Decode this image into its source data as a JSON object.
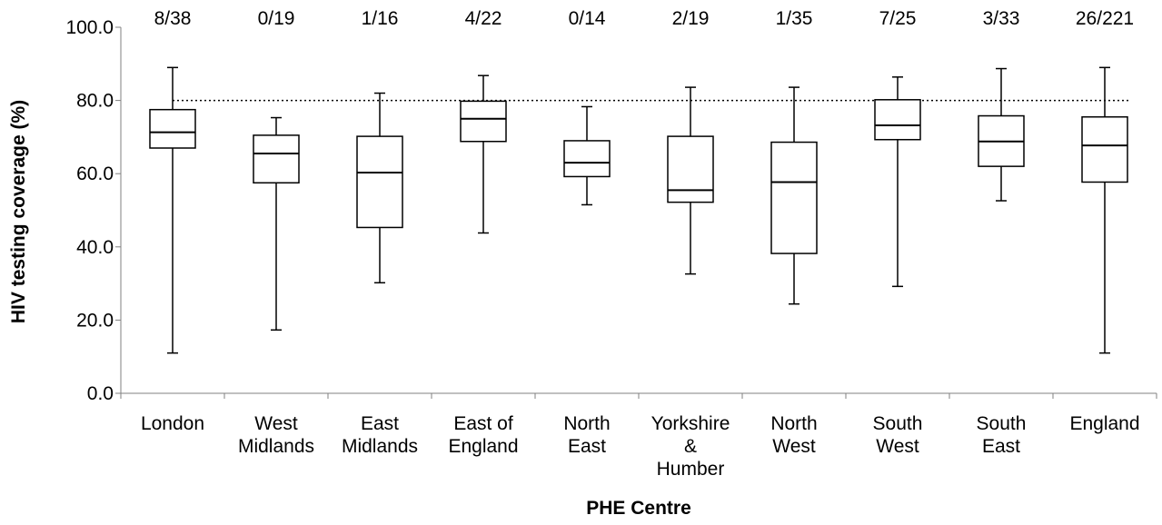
{
  "chart_data": {
    "type": "boxplot",
    "xlabel": "PHE Centre",
    "ylabel": "HIV testing coverage (%)",
    "ylim": [
      0,
      100
    ],
    "yticks": [
      "0.0",
      "20.0",
      "40.0",
      "60.0",
      "80.0",
      "100.0"
    ],
    "ytick_values": [
      0,
      20,
      40,
      60,
      80,
      100
    ],
    "reference_line": 80,
    "grid": false,
    "categories": [
      {
        "label_lines": [
          "London"
        ],
        "count": "8/38",
        "min": 11.0,
        "q1": 67.0,
        "median": 71.3,
        "q3": 77.5,
        "max": 89.0
      },
      {
        "label_lines": [
          "West",
          "Midlands"
        ],
        "count": "0/19",
        "min": 17.3,
        "q1": 57.5,
        "median": 65.5,
        "q3": 70.5,
        "max": 75.3
      },
      {
        "label_lines": [
          "East",
          "Midlands"
        ],
        "count": "1/16",
        "min": 30.2,
        "q1": 45.3,
        "median": 60.3,
        "q3": 70.2,
        "max": 82.0
      },
      {
        "label_lines": [
          "East of",
          "England"
        ],
        "count": "4/22",
        "min": 43.8,
        "q1": 68.8,
        "median": 75.0,
        "q3": 79.8,
        "max": 86.8
      },
      {
        "label_lines": [
          "North",
          "East"
        ],
        "count": "0/14",
        "min": 51.5,
        "q1": 59.2,
        "median": 63.0,
        "q3": 69.0,
        "max": 78.3
      },
      {
        "label_lines": [
          "Yorkshire",
          "&",
          "Humber"
        ],
        "count": "2/19",
        "min": 32.6,
        "q1": 52.2,
        "median": 55.5,
        "q3": 70.2,
        "max": 83.6
      },
      {
        "label_lines": [
          "North",
          "West"
        ],
        "count": "1/35",
        "min": 24.4,
        "q1": 38.2,
        "median": 57.7,
        "q3": 68.6,
        "max": 83.6
      },
      {
        "label_lines": [
          "South",
          "West"
        ],
        "count": "7/25",
        "min": 29.2,
        "q1": 69.3,
        "median": 73.2,
        "q3": 80.2,
        "max": 86.4
      },
      {
        "label_lines": [
          "South",
          "East"
        ],
        "count": "3/33",
        "min": 52.6,
        "q1": 62.0,
        "median": 68.8,
        "q3": 75.8,
        "max": 88.7
      },
      {
        "label_lines": [
          "England"
        ],
        "count": "26/221",
        "min": 11.0,
        "q1": 57.7,
        "median": 67.7,
        "q3": 75.5,
        "max": 89.0
      }
    ]
  }
}
